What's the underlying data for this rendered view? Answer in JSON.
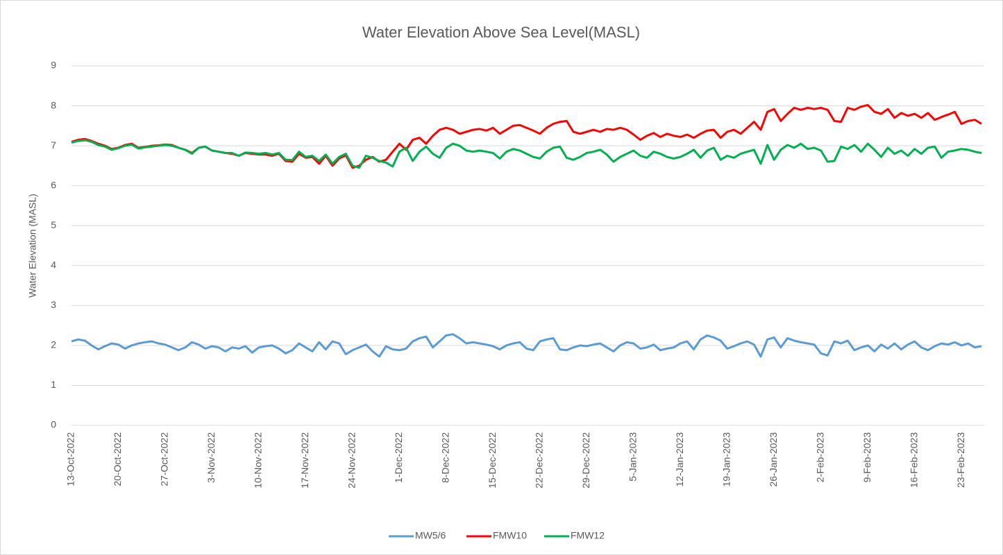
{
  "chart_data": {
    "type": "line",
    "title": "Water Elevation Above Sea Level(MASL)",
    "y_label": "Water Elevation (MASL)",
    "categories": [
      "13-Oct-2022",
      null,
      null,
      null,
      null,
      null,
      null,
      "20-Oct-2022",
      null,
      null,
      null,
      null,
      null,
      null,
      "27-Oct-2022",
      null,
      null,
      null,
      null,
      null,
      null,
      "3-Nov-2022",
      null,
      null,
      null,
      null,
      null,
      null,
      "10-Nov-2022",
      null,
      null,
      null,
      null,
      null,
      null,
      "17-Nov-2022",
      null,
      null,
      null,
      null,
      null,
      null,
      "24-Nov-2022",
      null,
      null,
      null,
      null,
      null,
      null,
      "1-Dec-2022",
      null,
      null,
      null,
      null,
      null,
      null,
      "8-Dec-2022",
      null,
      null,
      null,
      null,
      null,
      null,
      "15-Dec-2022",
      null,
      null,
      null,
      null,
      null,
      null,
      "22-Dec-2022",
      null,
      null,
      null,
      null,
      null,
      null,
      "29-Dec-2022",
      null,
      null,
      null,
      null,
      null,
      null,
      "5-Jan-2023",
      null,
      null,
      null,
      null,
      null,
      null,
      "12-Jan-2023",
      null,
      null,
      null,
      null,
      null,
      null,
      "19-Jan-2023",
      null,
      null,
      null,
      null,
      null,
      null,
      "26-Jan-2023",
      null,
      null,
      null,
      null,
      null,
      null,
      "2-Feb-2023",
      null,
      null,
      null,
      null,
      null,
      null,
      "9-Feb-2023",
      null,
      null,
      null,
      null,
      null,
      null,
      "16-Feb-2023",
      null,
      null,
      null,
      null,
      null,
      null,
      "23-Feb-2023",
      null,
      null,
      null
    ],
    "series": [
      {
        "name": "MW5/6",
        "color": "#5b9bd5",
        "values": [
          2.1,
          2.15,
          2.12,
          2.0,
          1.9,
          1.98,
          2.05,
          2.02,
          1.92,
          2.0,
          2.05,
          2.08,
          2.1,
          2.05,
          2.02,
          1.95,
          1.88,
          1.95,
          2.08,
          2.02,
          1.92,
          1.98,
          1.95,
          1.85,
          1.95,
          1.92,
          1.98,
          1.82,
          1.95,
          1.98,
          2.0,
          1.92,
          1.8,
          1.88,
          2.05,
          1.95,
          1.85,
          2.08,
          1.9,
          2.1,
          2.05,
          1.78,
          1.88,
          1.95,
          2.02,
          1.85,
          1.72,
          1.98,
          1.9,
          1.88,
          1.92,
          2.1,
          2.18,
          2.22,
          1.95,
          2.1,
          2.25,
          2.28,
          2.18,
          2.05,
          2.08,
          2.05,
          2.02,
          1.98,
          1.9,
          2.0,
          2.05,
          2.08,
          1.92,
          1.88,
          2.1,
          2.15,
          2.18,
          1.9,
          1.88,
          1.95,
          2.0,
          1.98,
          2.02,
          2.05,
          1.95,
          1.85,
          2.0,
          2.08,
          2.05,
          1.92,
          1.95,
          2.02,
          1.88,
          1.92,
          1.95,
          2.05,
          2.1,
          1.9,
          2.15,
          2.25,
          2.2,
          2.12,
          1.92,
          1.98,
          2.05,
          2.1,
          2.02,
          1.72,
          2.15,
          2.2,
          1.95,
          2.18,
          2.12,
          2.08,
          2.05,
          2.02,
          1.8,
          1.75,
          2.1,
          2.05,
          2.12,
          1.88,
          1.95,
          2.0,
          1.85,
          2.02,
          1.92,
          2.05,
          1.9,
          2.02,
          2.1,
          1.95,
          1.88,
          1.98,
          2.05,
          2.02,
          2.08,
          2.0,
          2.05,
          1.95,
          1.98
        ]
      },
      {
        "name": "FMW10",
        "color": "#ff0000",
        "values": [
          7.1,
          7.15,
          7.17,
          7.12,
          7.05,
          7.0,
          6.92,
          6.95,
          7.02,
          7.05,
          6.95,
          6.97,
          7.0,
          7.01,
          7.03,
          7.02,
          6.95,
          6.9,
          6.82,
          6.95,
          6.98,
          6.88,
          6.85,
          6.82,
          6.8,
          6.75,
          6.82,
          6.8,
          6.78,
          6.78,
          6.75,
          6.8,
          6.62,
          6.6,
          6.8,
          6.7,
          6.72,
          6.55,
          6.75,
          6.5,
          6.68,
          6.76,
          6.45,
          6.5,
          6.65,
          6.72,
          6.6,
          6.65,
          6.85,
          7.05,
          6.9,
          7.15,
          7.2,
          7.05,
          7.25,
          7.4,
          7.45,
          7.4,
          7.3,
          7.35,
          7.4,
          7.42,
          7.38,
          7.45,
          7.3,
          7.4,
          7.5,
          7.52,
          7.45,
          7.38,
          7.3,
          7.45,
          7.55,
          7.6,
          7.62,
          7.35,
          7.3,
          7.35,
          7.4,
          7.35,
          7.42,
          7.4,
          7.45,
          7.4,
          7.28,
          7.15,
          7.25,
          7.32,
          7.22,
          7.3,
          7.25,
          7.22,
          7.28,
          7.2,
          7.3,
          7.38,
          7.4,
          7.2,
          7.35,
          7.4,
          7.3,
          7.45,
          7.6,
          7.4,
          7.85,
          7.92,
          7.62,
          7.8,
          7.95,
          7.9,
          7.95,
          7.92,
          7.95,
          7.9,
          7.62,
          7.6,
          7.95,
          7.9,
          7.98,
          8.02,
          7.85,
          7.8,
          7.92,
          7.7,
          7.82,
          7.75,
          7.8,
          7.7,
          7.82,
          7.65,
          7.72,
          7.78,
          7.85,
          7.55,
          7.62,
          7.65,
          7.55
        ]
      },
      {
        "name": "FMW12",
        "color": "#00b050",
        "values": [
          7.08,
          7.12,
          7.14,
          7.1,
          7.02,
          6.98,
          6.9,
          6.94,
          7.0,
          7.03,
          6.93,
          6.96,
          6.98,
          7.0,
          7.02,
          7.0,
          6.95,
          6.9,
          6.8,
          6.95,
          6.98,
          6.88,
          6.85,
          6.82,
          6.82,
          6.75,
          6.83,
          6.82,
          6.8,
          6.82,
          6.78,
          6.82,
          6.65,
          6.64,
          6.85,
          6.72,
          6.75,
          6.62,
          6.78,
          6.55,
          6.72,
          6.8,
          6.5,
          6.45,
          6.75,
          6.7,
          6.62,
          6.58,
          6.48,
          6.85,
          6.95,
          6.62,
          6.85,
          6.98,
          6.8,
          6.7,
          6.95,
          7.05,
          7.0,
          6.88,
          6.85,
          6.88,
          6.85,
          6.82,
          6.68,
          6.85,
          6.92,
          6.88,
          6.8,
          6.72,
          6.68,
          6.85,
          6.95,
          6.98,
          6.7,
          6.65,
          6.72,
          6.82,
          6.85,
          6.9,
          6.78,
          6.6,
          6.72,
          6.8,
          6.88,
          6.75,
          6.7,
          6.85,
          6.8,
          6.72,
          6.68,
          6.72,
          6.8,
          6.9,
          6.7,
          6.88,
          6.95,
          6.65,
          6.75,
          6.7,
          6.8,
          6.85,
          6.9,
          6.55,
          7.02,
          6.65,
          6.9,
          7.02,
          6.95,
          7.05,
          6.92,
          6.95,
          6.88,
          6.6,
          6.62,
          6.98,
          6.92,
          7.02,
          6.85,
          7.05,
          6.9,
          6.72,
          6.95,
          6.8,
          6.88,
          6.75,
          6.92,
          6.8,
          6.95,
          6.98,
          6.7,
          6.85,
          6.88,
          6.92,
          6.9,
          6.85,
          6.82
        ]
      }
    ],
    "ylim": [
      0,
      9
    ],
    "yticks": [
      0,
      1,
      2,
      3,
      4,
      5,
      6,
      7,
      8,
      9
    ],
    "grid": true,
    "legend": "bottom"
  }
}
